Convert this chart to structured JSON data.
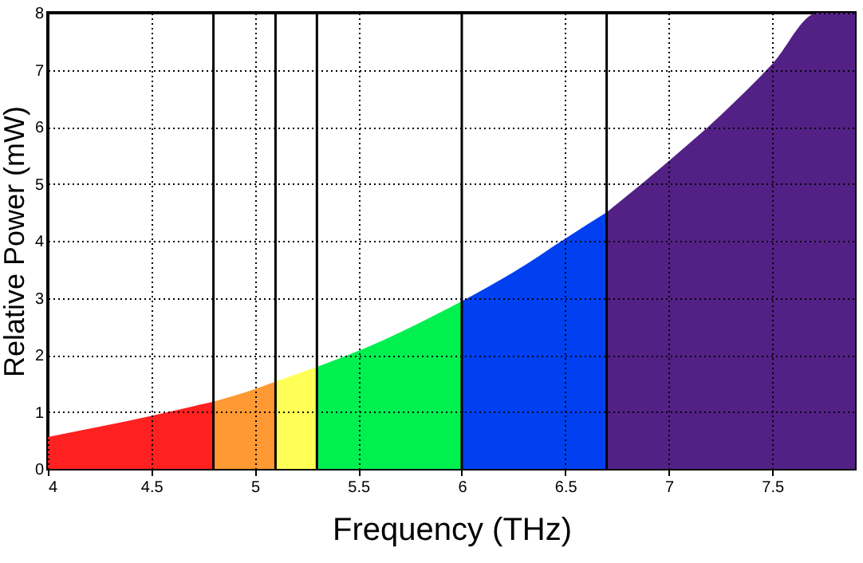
{
  "chart_data": {
    "type": "area",
    "xlabel": "Frequency (THz)",
    "ylabel": "Relative Power (mW)",
    "xlim": [
      4,
      7.9
    ],
    "ylim": [
      0,
      8
    ],
    "xticks": [
      4,
      4.5,
      5,
      5.5,
      6,
      6.5,
      7,
      7.5
    ],
    "yticks": [
      0,
      1,
      2,
      3,
      4,
      5,
      6,
      7,
      8
    ],
    "grid": true,
    "series": [
      {
        "color": "#ff2020",
        "x": [
          4,
          4.25,
          4.5,
          4.8
        ],
        "values": [
          0.56,
          0.74,
          0.93,
          1.18
        ]
      },
      {
        "color": "#ff9933",
        "x": [
          4.8,
          5.0,
          5.1
        ],
        "values": [
          1.18,
          1.4,
          1.53
        ]
      },
      {
        "color": "#ffff55",
        "x": [
          5.1,
          5.2,
          5.3
        ],
        "values": [
          1.53,
          1.66,
          1.79
        ]
      },
      {
        "color": "#00f050",
        "x": [
          5.3,
          5.5,
          5.75,
          6.0
        ],
        "values": [
          1.79,
          2.07,
          2.48,
          2.94
        ]
      },
      {
        "color": "#0040f0",
        "x": [
          6.0,
          6.25,
          6.5,
          6.7
        ],
        "values": [
          2.94,
          3.45,
          4.04,
          4.5
        ]
      },
      {
        "color": "#532185",
        "x": [
          6.7,
          7.0,
          7.25,
          7.5,
          7.72,
          7.9
        ],
        "values": [
          4.5,
          5.4,
          6.2,
          7.1,
          8,
          8
        ]
      }
    ],
    "ref_lines": [
      {
        "axis": "x",
        "value": 4.8,
        "color": "#000000"
      },
      {
        "axis": "x",
        "value": 5.1,
        "color": "#000000"
      },
      {
        "axis": "x",
        "value": 5.3,
        "color": "#000000"
      },
      {
        "axis": "x",
        "value": 6.0,
        "color": "#000000"
      },
      {
        "axis": "x",
        "value": 6.7,
        "color": "#000000"
      }
    ]
  }
}
